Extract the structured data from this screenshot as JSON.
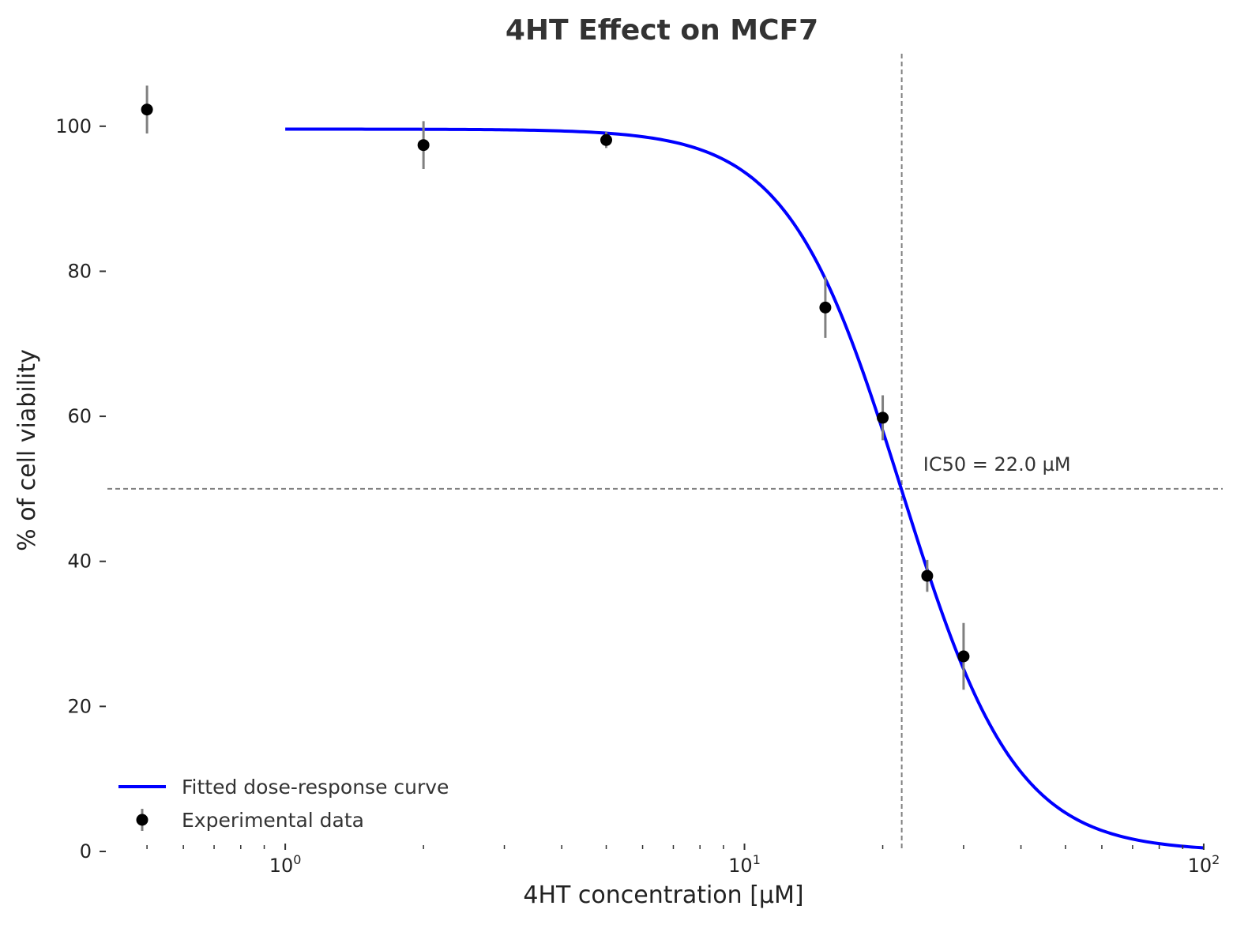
{
  "chart_data": {
    "type": "scatter",
    "title": "4HT Effect on MCF7",
    "xlabel": "4HT concentration [µM]",
    "ylabel": "% of cell viability",
    "xscale": "log",
    "xlim": [
      0.41,
      110
    ],
    "ylim": [
      0,
      110
    ],
    "yticks": [
      0,
      20,
      40,
      60,
      80,
      100
    ],
    "xticks_major": [
      {
        "value": 1,
        "base": "10",
        "exp": "0"
      },
      {
        "value": 10,
        "base": "10",
        "exp": "1"
      },
      {
        "value": 100,
        "base": "10",
        "exp": "2"
      }
    ],
    "grid": false,
    "legend_position": "bottom-left",
    "series": [
      {
        "name": "Experimental data",
        "kind": "errorbar",
        "color": "#000000",
        "error_color": "#808080",
        "x": [
          0.5,
          2,
          5,
          15,
          20,
          25,
          30
        ],
        "y": [
          102.3,
          97.4,
          98.1,
          75.0,
          59.8,
          38.0,
          26.9
        ],
        "yerr": [
          3.3,
          3.3,
          1.1,
          4.2,
          3.1,
          2.2,
          4.6
        ]
      },
      {
        "name": "Fitted dose-response curve",
        "kind": "line",
        "color": "#0000ff",
        "model": "hill",
        "top": 99.6,
        "bottom": 0,
        "ic50": 22.0,
        "hill_slope": 3.5,
        "x_range": [
          1,
          100
        ]
      }
    ],
    "reference_lines": [
      {
        "orientation": "vertical",
        "value": 22.0,
        "color": "#808080",
        "style": "dashed"
      },
      {
        "orientation": "horizontal",
        "value": 50,
        "color": "#808080",
        "style": "dashed"
      }
    ],
    "annotations": [
      {
        "text": "IC50 = 22.0 µM",
        "x": 24.5,
        "y": 52.5
      }
    ]
  }
}
